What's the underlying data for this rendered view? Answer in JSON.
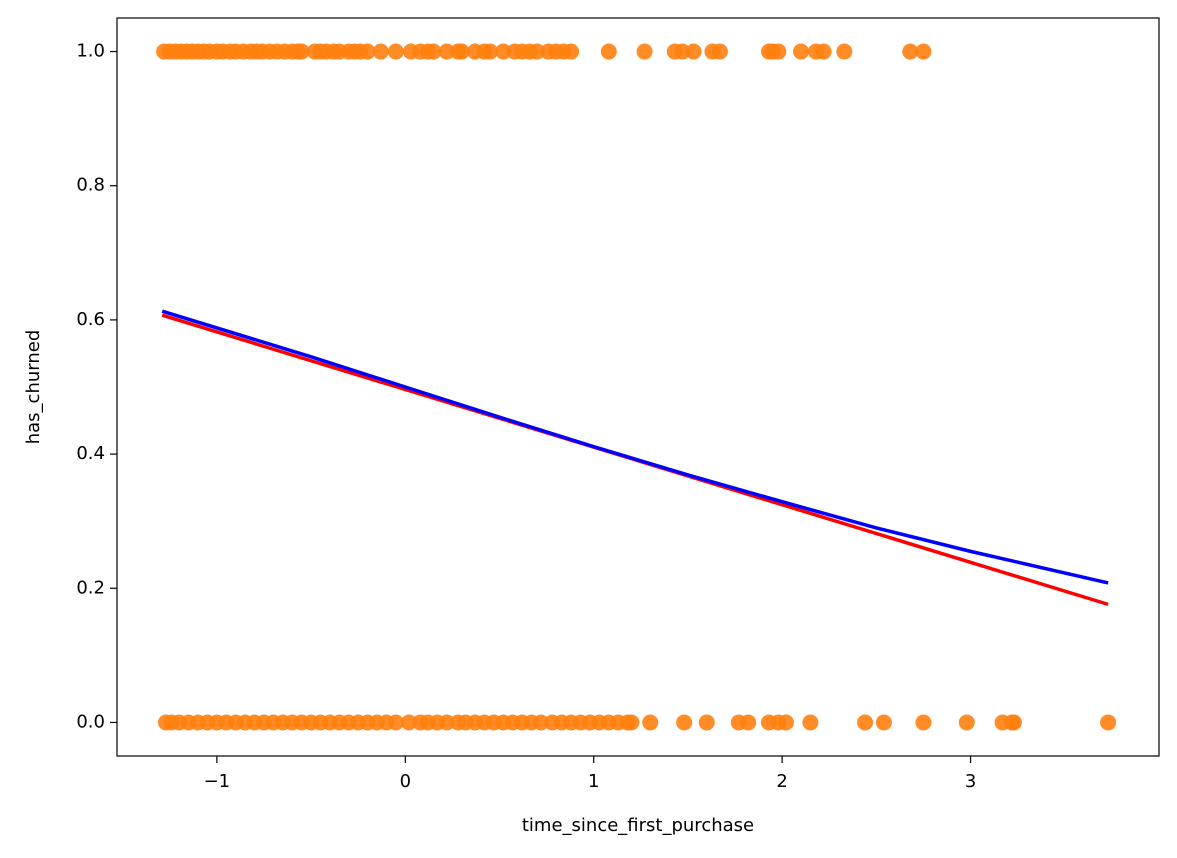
{
  "chart_data": {
    "type": "scatter",
    "xlabel": "time_since_first_purchase",
    "ylabel": "has_churned",
    "xlim": [
      -1.53,
      4.0
    ],
    "ylim": [
      -0.05,
      1.05
    ],
    "xticks": [
      {
        "value": -1,
        "label": "−1"
      },
      0,
      1,
      2,
      3
    ],
    "yticks": [
      {
        "value": 0,
        "label": "0.0"
      },
      {
        "value": 0.2,
        "label": "0.2"
      },
      {
        "value": 0.4,
        "label": "0.4"
      },
      {
        "value": 0.6,
        "label": "0.6"
      },
      {
        "value": 0.8,
        "label": "0.8"
      },
      {
        "value": 1,
        "label": "1.0"
      }
    ],
    "series": [
      {
        "style": "scatter",
        "color": "#ff7f0e",
        "x": [
          -1.28,
          -1.25,
          -1.22,
          -1.19,
          -1.16,
          -1.13,
          -1.1,
          -1.07,
          -1.04,
          -1.0,
          -0.97,
          -0.93,
          -0.9,
          -0.86,
          -0.82,
          -0.79,
          -0.76,
          -0.72,
          -0.68,
          -0.64,
          -0.6,
          -0.57,
          -0.55,
          -0.48,
          -0.45,
          -0.42,
          -0.38,
          -0.35,
          -0.3,
          -0.27,
          -0.24,
          -0.2,
          -0.13,
          -0.05,
          0.03,
          0.08,
          0.12,
          0.15,
          0.22,
          0.28,
          0.3,
          0.37,
          0.42,
          0.45,
          0.52,
          0.58,
          0.62,
          0.66,
          0.7,
          0.76,
          0.8,
          0.84,
          0.88,
          1.08,
          1.27,
          1.43,
          1.47,
          1.53,
          1.63,
          1.67,
          1.93,
          1.95,
          1.98,
          2.1,
          2.18,
          2.22,
          2.33,
          2.68,
          2.75,
          -1.27,
          -1.24,
          -1.2,
          -1.15,
          -1.1,
          -1.05,
          -1.0,
          -0.95,
          -0.9,
          -0.85,
          -0.8,
          -0.75,
          -0.7,
          -0.65,
          -0.6,
          -0.55,
          -0.5,
          -0.45,
          -0.4,
          -0.35,
          -0.3,
          -0.25,
          -0.2,
          -0.15,
          -0.1,
          -0.05,
          0.02,
          0.08,
          0.12,
          0.17,
          0.22,
          0.28,
          0.32,
          0.37,
          0.42,
          0.47,
          0.52,
          0.57,
          0.62,
          0.67,
          0.72,
          0.78,
          0.83,
          0.88,
          0.93,
          0.98,
          1.03,
          1.08,
          1.13,
          1.18,
          1.2,
          1.3,
          1.48,
          1.6,
          1.77,
          1.82,
          1.93,
          1.98,
          2.02,
          2.15,
          2.44,
          2.54,
          2.75,
          2.98,
          3.17,
          3.22,
          3.23,
          3.73
        ],
        "values": [
          1,
          1,
          1,
          1,
          1,
          1,
          1,
          1,
          1,
          1,
          1,
          1,
          1,
          1,
          1,
          1,
          1,
          1,
          1,
          1,
          1,
          1,
          1,
          1,
          1,
          1,
          1,
          1,
          1,
          1,
          1,
          1,
          1,
          1,
          1,
          1,
          1,
          1,
          1,
          1,
          1,
          1,
          1,
          1,
          1,
          1,
          1,
          1,
          1,
          1,
          1,
          1,
          1,
          1,
          1,
          1,
          1,
          1,
          1,
          1,
          1,
          1,
          1,
          1,
          1,
          1,
          1,
          1,
          1,
          0,
          0,
          0,
          0,
          0,
          0,
          0,
          0,
          0,
          0,
          0,
          0,
          0,
          0,
          0,
          0,
          0,
          0,
          0,
          0,
          0,
          0,
          0,
          0,
          0,
          0,
          0,
          0,
          0,
          0,
          0,
          0,
          0,
          0,
          0,
          0,
          0,
          0,
          0,
          0,
          0,
          0,
          0,
          0,
          0,
          0,
          0,
          0,
          0,
          0,
          0,
          0,
          0,
          0,
          0,
          0,
          0,
          0,
          0,
          0,
          0,
          0,
          0,
          0,
          0,
          0,
          0,
          0
        ]
      },
      {
        "style": "line",
        "color": "#ff0000",
        "x": [
          -1.29,
          3.73
        ],
        "values": [
          0.607,
          0.176
        ]
      },
      {
        "style": "line",
        "color": "#0000ff",
        "x": [
          -1.29,
          -0.5,
          0,
          0.5,
          1,
          1.5,
          2,
          2.5,
          3,
          3.73
        ],
        "values": [
          0.613,
          0.545,
          0.5,
          0.455,
          0.411,
          0.369,
          0.329,
          0.29,
          0.255,
          0.208
        ]
      }
    ]
  }
}
